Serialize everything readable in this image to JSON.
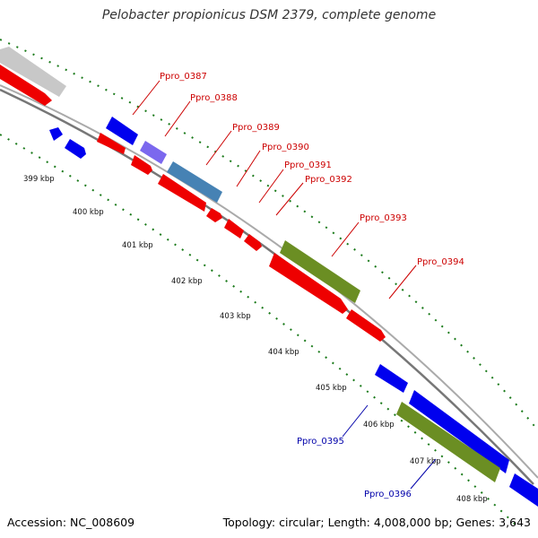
{
  "title": "Pelobacter propionicus DSM 2379, complete genome",
  "footer": {
    "accession": "Accession: NC_008609",
    "summary": "Topology: circular; Length: 4,008,000 bp; Genes: 3,643"
  },
  "colors": {
    "forward_cds": "#0000ee",
    "reverse_cds": "#ee0000",
    "label_red": "#cc0000",
    "label_blue": "#0000aa",
    "olive": "#6b8e23",
    "steelblue": "#4682b4",
    "slateblue": "#7b68ee",
    "grey_feature": "#bdbdbd",
    "backbone": "#8c8c8c",
    "gc_ticks": "#1a7a1a"
  },
  "kbp_ticks": [
    "399 kbp",
    "400 kbp",
    "401 kbp",
    "402 kbp",
    "403 kbp",
    "404 kbp",
    "405 kbp",
    "406 kbp",
    "407 kbp",
    "408 kbp"
  ],
  "gene_labels": [
    {
      "text": "Ppro_0387",
      "color": "red"
    },
    {
      "text": "Ppro_0388",
      "color": "red"
    },
    {
      "text": "Ppro_0389",
      "color": "red"
    },
    {
      "text": "Ppro_0390",
      "color": "red"
    },
    {
      "text": "Ppro_0391",
      "color": "red"
    },
    {
      "text": "Ppro_0392",
      "color": "red"
    },
    {
      "text": "Ppro_0393",
      "color": "red"
    },
    {
      "text": "Ppro_0394",
      "color": "red"
    },
    {
      "text": "Ppro_0395",
      "color": "blue"
    },
    {
      "text": "Ppro_0396",
      "color": "blue"
    }
  ]
}
